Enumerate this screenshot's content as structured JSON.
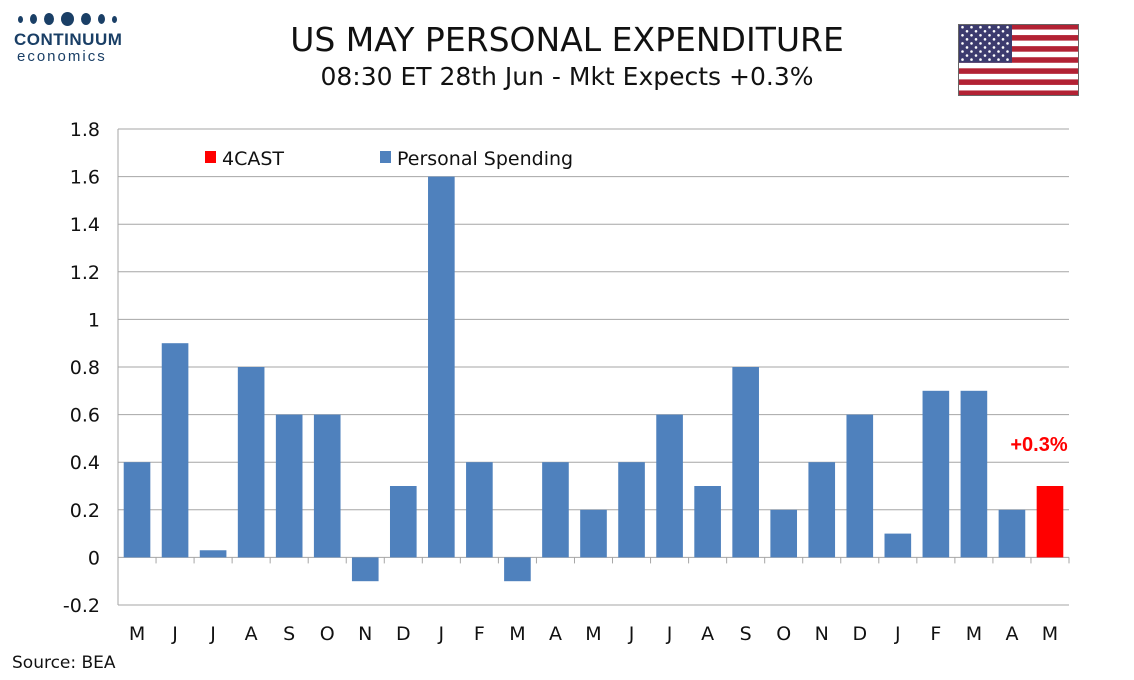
{
  "header": {
    "title": "US MAY PERSONAL EXPENDITURE",
    "subtitle": "08:30 ET 28th Jun - Mkt Expects +0.3%"
  },
  "logo": {
    "name": "CONTINUUM",
    "sub": "economics"
  },
  "footer": {
    "source": "Source: BEA"
  },
  "colors": {
    "spending": "#4f81bd",
    "forecast": "#ff0000",
    "grid": "#a6a6a6",
    "brand": "#1a3f66"
  },
  "icons": {
    "flag": "us-flag-icon"
  },
  "chart_data": {
    "type": "bar",
    "categories": [
      "M",
      "J",
      "J",
      "A",
      "S",
      "O",
      "N",
      "D",
      "J",
      "F",
      "M",
      "A",
      "M",
      "J",
      "J",
      "A",
      "S",
      "O",
      "N",
      "D",
      "J",
      "F",
      "M",
      "A",
      "M"
    ],
    "series": [
      {
        "name": "Personal Spending",
        "color": "#4f81bd",
        "values": [
          0.4,
          0.9,
          0.03,
          0.8,
          0.6,
          0.6,
          -0.1,
          0.3,
          1.6,
          0.4,
          -0.1,
          0.4,
          0.2,
          0.4,
          0.6,
          0.3,
          0.8,
          0.2,
          0.4,
          0.6,
          0.1,
          0.7,
          0.7,
          0.2,
          null
        ]
      },
      {
        "name": "4CAST",
        "color": "#ff0000",
        "values": [
          null,
          null,
          null,
          null,
          null,
          null,
          null,
          null,
          null,
          null,
          null,
          null,
          null,
          null,
          null,
          null,
          null,
          null,
          null,
          null,
          null,
          null,
          null,
          null,
          0.3
        ]
      }
    ],
    "ylim": [
      -0.2,
      1.8
    ],
    "yticks": [
      1.8,
      1.6,
      1.4,
      1.2,
      1,
      0.8,
      0.6,
      0.4,
      0.2,
      0,
      -0.2
    ],
    "ytick_labels": [
      "1.8",
      "1.6",
      "1.4",
      "1.2",
      "1",
      "0.8",
      "0.6",
      "0.4",
      "0.2",
      "0",
      "-0.2"
    ],
    "grid": true,
    "legend": {
      "position": "top-left"
    },
    "annotation": {
      "text": "+0.3%",
      "category_index": 24,
      "value": 0.3,
      "color": "#ff0000"
    }
  }
}
